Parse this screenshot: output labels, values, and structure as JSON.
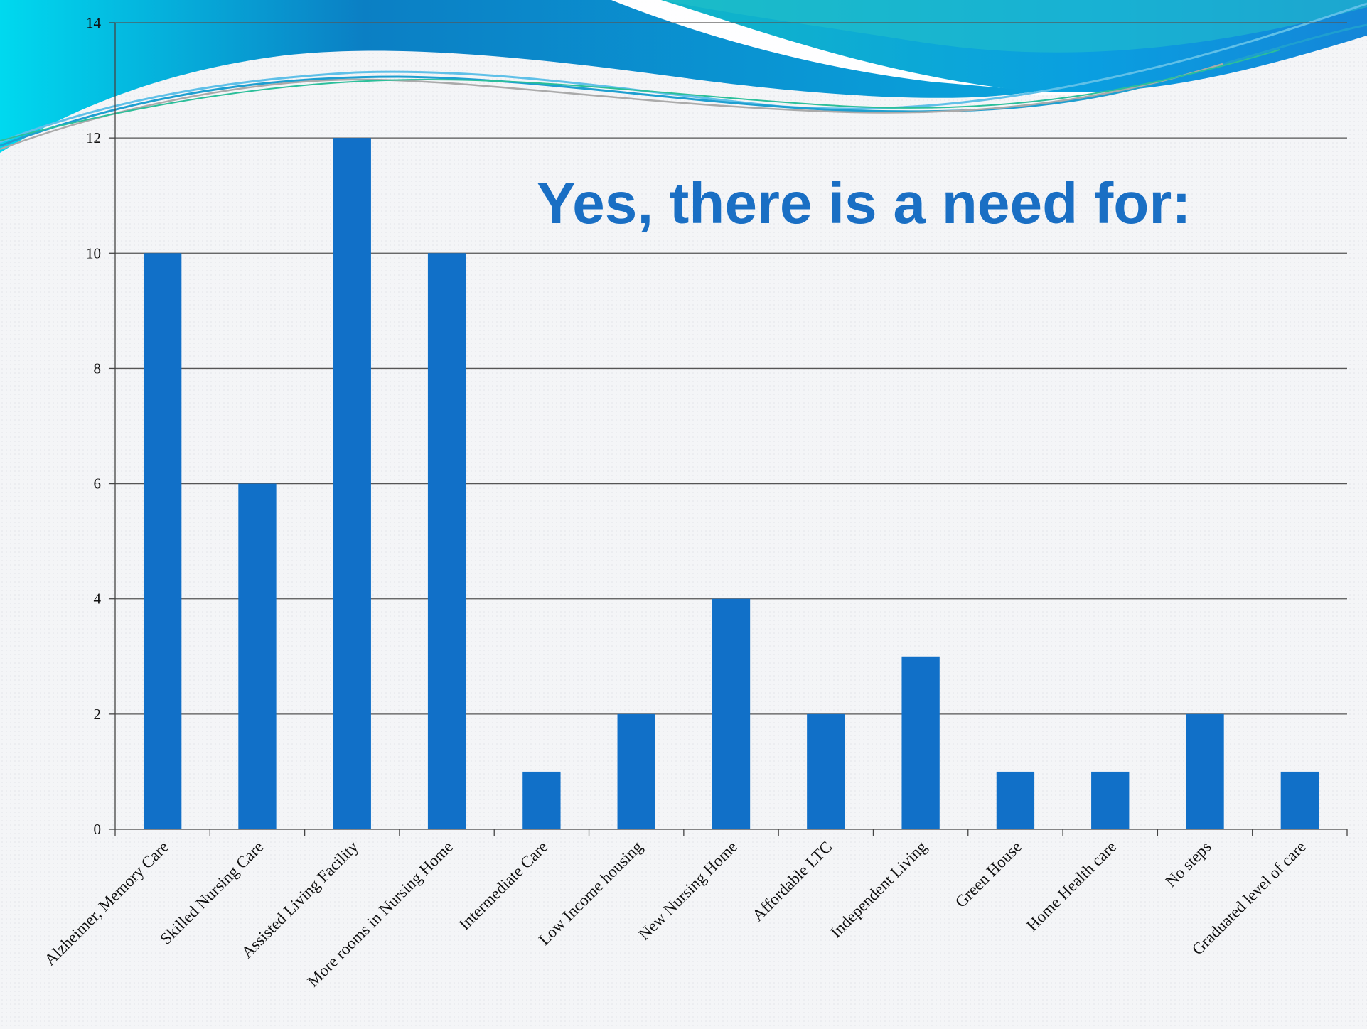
{
  "headline": "Yes, there is a need for:",
  "colors": {
    "bar": "#1170c8",
    "grid": "#555555",
    "headline": "#1a6fc4"
  },
  "chart_data": {
    "type": "bar",
    "title": "Yes, there is a need for:",
    "xlabel": "",
    "ylabel": "",
    "ylim": [
      0,
      14
    ],
    "yticks": [
      0,
      2,
      4,
      6,
      8,
      10,
      12,
      14
    ],
    "ytick_labels": [
      "0",
      "2",
      "4",
      "6",
      "8",
      "10",
      "12",
      "14"
    ],
    "grid": true,
    "legend": "none",
    "categories": [
      "Alzheimer, Memory Care",
      "Skilled Nursing Care",
      "Assisted Living Facility",
      "More rooms in Nursing Home",
      "Intermediate Care",
      "Low Income housing",
      "New Nursing Home",
      "Affordable LTC",
      "Independent Living",
      "Green House",
      "Home Health care",
      "No steps",
      "Graduated level of care"
    ],
    "values": [
      10,
      6,
      12,
      10,
      1,
      2,
      4,
      2,
      3,
      1,
      1,
      2,
      1
    ]
  }
}
